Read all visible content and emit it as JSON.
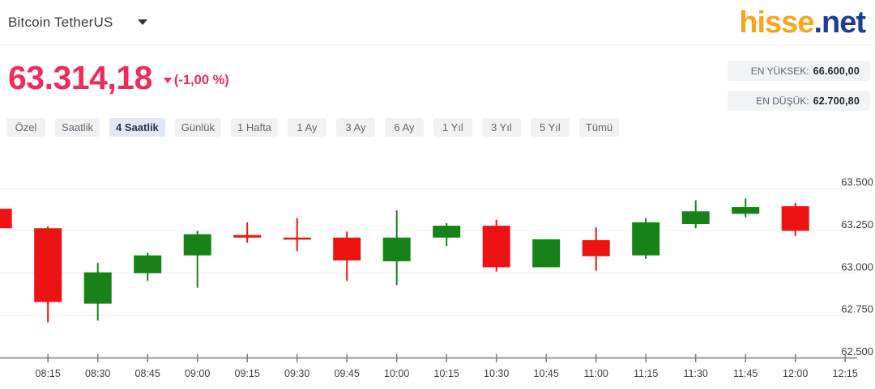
{
  "header": {
    "instrument": "Bitcoin TetherUS",
    "logo": {
      "part1": "hisse",
      "part2": ".net"
    }
  },
  "quote": {
    "price": "63.314,18",
    "change": "(-1,00 %)",
    "direction": "down",
    "stats": [
      {
        "label": "EN YÜKSEK:",
        "value": "66.600,00"
      },
      {
        "label": "EN DÜŞÜK:",
        "value": "62.700,80"
      }
    ]
  },
  "tabs": [
    {
      "label": "Özel",
      "selected": false
    },
    {
      "label": "Saatlik",
      "selected": false
    },
    {
      "label": "4 Saatlik",
      "selected": true
    },
    {
      "label": "Günlük",
      "selected": false
    },
    {
      "label": "1 Hafta",
      "selected": false
    },
    {
      "label": "1 Ay",
      "selected": false
    },
    {
      "label": "3 Ay",
      "selected": false
    },
    {
      "label": "6 Ay",
      "selected": false
    },
    {
      "label": "1 Yıl",
      "selected": false
    },
    {
      "label": "3 Yıl",
      "selected": false
    },
    {
      "label": "5 Yıl",
      "selected": false
    },
    {
      "label": "Tümü",
      "selected": false
    }
  ],
  "colors": {
    "price_pink": "#f02a5c",
    "logo_orange": "#f5a61f",
    "logo_navy": "#1f3d96",
    "candle_up": "#178217",
    "candle_down": "#ee1313",
    "gridline": "#ececec",
    "axis_line": "#9a9a9a",
    "axis_text": "#3d3d3d"
  },
  "chart_data": {
    "type": "candlestick",
    "title": "Bitcoin TetherUS 4-hour view candlestick chart",
    "x_labels": [
      "08:15",
      "08:30",
      "08:45",
      "09:00",
      "09:15",
      "09:30",
      "09:45",
      "10:00",
      "10:15",
      "10:30",
      "10:45",
      "11:00",
      "11:15",
      "11:30",
      "11:45",
      "12:00",
      "12:15"
    ],
    "y_ticks": [
      {
        "value": 63500,
        "label": "63.500"
      },
      {
        "value": 63250,
        "label": "63.250"
      },
      {
        "value": 63000,
        "label": "63.000"
      },
      {
        "value": 62750,
        "label": "62.750"
      },
      {
        "value": 62500,
        "label": "62.500"
      }
    ],
    "ylim": [
      62500,
      63500
    ],
    "grid": true,
    "legend": "none",
    "candles": [
      {
        "i": -1,
        "time": "",
        "open": 63380,
        "high": 63380,
        "low": 63265,
        "close": 63265,
        "clipped": true
      },
      {
        "i": 0,
        "time": "08:15",
        "open": 63265,
        "high": 63275,
        "low": 62710,
        "close": 62830
      },
      {
        "i": 1,
        "time": "08:30",
        "open": 62820,
        "high": 63060,
        "low": 62720,
        "close": 63005
      },
      {
        "i": 2,
        "time": "08:45",
        "open": 63000,
        "high": 63120,
        "low": 62955,
        "close": 63105
      },
      {
        "i": 3,
        "time": "09:00",
        "open": 63105,
        "high": 63250,
        "low": 62915,
        "close": 63230
      },
      {
        "i": 4,
        "time": "09:15",
        "open": 63225,
        "high": 63300,
        "low": 63180,
        "close": 63210
      },
      {
        "i": 5,
        "time": "09:30",
        "open": 63210,
        "high": 63325,
        "low": 63130,
        "close": 63200
      },
      {
        "i": 6,
        "time": "09:45",
        "open": 63210,
        "high": 63245,
        "low": 62955,
        "close": 63075
      },
      {
        "i": 7,
        "time": "10:00",
        "open": 63070,
        "high": 63370,
        "low": 62930,
        "close": 63210
      },
      {
        "i": 8,
        "time": "10:15",
        "open": 63210,
        "high": 63295,
        "low": 63160,
        "close": 63280
      },
      {
        "i": 9,
        "time": "10:30",
        "open": 63280,
        "high": 63315,
        "low": 63010,
        "close": 63035
      },
      {
        "i": 10,
        "time": "10:45",
        "open": 63035,
        "high": 63200,
        "low": 63035,
        "close": 63200
      },
      {
        "i": 11,
        "time": "11:00",
        "open": 63195,
        "high": 63270,
        "low": 63015,
        "close": 63100
      },
      {
        "i": 12,
        "time": "11:15",
        "open": 63105,
        "high": 63325,
        "low": 63085,
        "close": 63300
      },
      {
        "i": 13,
        "time": "11:30",
        "open": 63290,
        "high": 63430,
        "low": 63265,
        "close": 63365
      },
      {
        "i": 14,
        "time": "11:45",
        "open": 63350,
        "high": 63440,
        "low": 63330,
        "close": 63390
      },
      {
        "i": 15,
        "time": "12:00",
        "open": 63395,
        "high": 63415,
        "low": 63220,
        "close": 63250
      }
    ]
  }
}
